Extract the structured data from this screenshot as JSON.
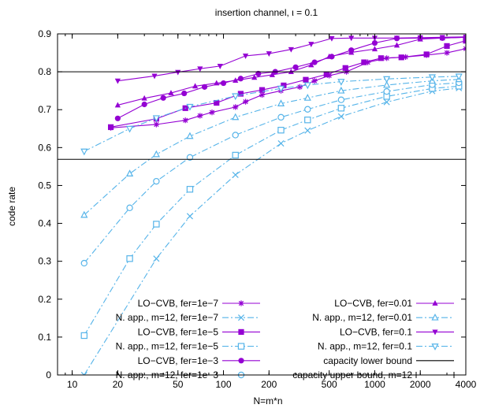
{
  "chart_data": {
    "type": "line",
    "title": "insertion channel, ι = 0.1",
    "xlabel": "N=m*n",
    "ylabel": "code rate",
    "xscale": "log",
    "xlim": [
      8,
      4000
    ],
    "ylim": [
      0,
      0.9
    ],
    "xticks": [
      10,
      20,
      50,
      100,
      200,
      500,
      1000,
      2000,
      4000
    ],
    "yticks": [
      0,
      0.1,
      0.2,
      0.3,
      0.4,
      0.5,
      0.6,
      0.7,
      0.8,
      0.9
    ],
    "grid": false,
    "legend_position": "bottom",
    "colors": {
      "purple": "#9400d3",
      "cyan": "#56b4e9",
      "black": "#000000"
    },
    "series": [
      {
        "name": "LO−CVB, fer=1e−7",
        "color": "#9400d3",
        "marker": "star",
        "line": "solid",
        "x": [
          18,
          36,
          56,
          70,
          84,
          120,
          140,
          180,
          240,
          320,
          400,
          500,
          650,
          900,
          1200,
          1600,
          2200,
          3000,
          4000
        ],
        "y": [
          0.652,
          0.661,
          0.672,
          0.684,
          0.693,
          0.707,
          0.721,
          0.739,
          0.75,
          0.76,
          0.776,
          0.79,
          0.8,
          0.825,
          0.836,
          0.839,
          0.844,
          0.85,
          0.861
        ]
      },
      {
        "name": "N. app., m=12, fer=1e−7",
        "color": "#56b4e9",
        "marker": "x",
        "line": "dashdot",
        "x": [
          12,
          36,
          60,
          120,
          240,
          360,
          600,
          1200,
          2400,
          3600
        ],
        "y": [
          0.0,
          0.307,
          0.419,
          0.528,
          0.611,
          0.645,
          0.682,
          0.72,
          0.749,
          0.757
        ]
      },
      {
        "name": "LO−CVB, fer=1e−5",
        "color": "#9400d3",
        "marker": "square",
        "line": "solid",
        "x": [
          18,
          36,
          56,
          90,
          130,
          180,
          250,
          350,
          480,
          640,
          850,
          1100,
          1500,
          2200,
          3000,
          4000
        ],
        "y": [
          0.654,
          0.676,
          0.704,
          0.718,
          0.742,
          0.752,
          0.764,
          0.779,
          0.793,
          0.81,
          0.825,
          0.836,
          0.838,
          0.846,
          0.868,
          0.882
        ]
      },
      {
        "name": "N. app., m=12, fer=1e−5",
        "color": "#56b4e9",
        "marker": "open-square",
        "line": "dashdot",
        "x": [
          12,
          24,
          36,
          60,
          120,
          240,
          360,
          600,
          1200,
          2400,
          3600
        ],
        "y": [
          0.104,
          0.307,
          0.398,
          0.49,
          0.58,
          0.646,
          0.673,
          0.704,
          0.735,
          0.756,
          0.762
        ]
      },
      {
        "name": "LO−CVB, fer=1e−3",
        "color": "#9400d3",
        "marker": "circle",
        "line": "solid",
        "x": [
          20,
          30,
          40,
          55,
          75,
          100,
          130,
          170,
          220,
          300,
          400,
          520,
          700,
          1000,
          1400,
          2000,
          2800,
          4000
        ],
        "y": [
          0.677,
          0.714,
          0.731,
          0.743,
          0.76,
          0.77,
          0.782,
          0.795,
          0.8,
          0.812,
          0.825,
          0.84,
          0.857,
          0.876,
          0.888,
          0.889,
          0.889,
          0.891
        ]
      },
      {
        "name": "N. app., m=12, fer=1e−3",
        "color": "#56b4e9",
        "marker": "open-circle",
        "line": "dashdot",
        "x": [
          12,
          24,
          36,
          60,
          120,
          240,
          360,
          600,
          1200,
          2400,
          3600
        ],
        "y": [
          0.295,
          0.441,
          0.511,
          0.574,
          0.633,
          0.68,
          0.701,
          0.726,
          0.748,
          0.766,
          0.771
        ]
      },
      {
        "name": "LO−CVB, fer=0.01",
        "color": "#9400d3",
        "marker": "triangle",
        "line": "solid",
        "x": [
          20,
          30,
          45,
          65,
          90,
          120,
          160,
          210,
          280,
          380,
          500,
          700,
          1000,
          1400,
          2000,
          2800,
          4000
        ],
        "y": [
          0.712,
          0.73,
          0.744,
          0.762,
          0.77,
          0.777,
          0.785,
          0.792,
          0.8,
          0.818,
          0.84,
          0.851,
          0.86,
          0.87,
          0.886,
          0.889,
          0.891
        ]
      },
      {
        "name": "N. app., m=12, fer=0.01",
        "color": "#56b4e9",
        "marker": "open-triangle",
        "line": "dashdot",
        "x": [
          12,
          24,
          36,
          60,
          120,
          240,
          360,
          600,
          1200,
          2400,
          3600
        ],
        "y": [
          0.422,
          0.531,
          0.582,
          0.63,
          0.68,
          0.716,
          0.731,
          0.75,
          0.765,
          0.776,
          0.78
        ]
      },
      {
        "name": "LO−CVB, fer=0.1",
        "color": "#9400d3",
        "marker": "triangle-down",
        "line": "solid",
        "x": [
          20,
          35,
          50,
          70,
          95,
          140,
          200,
          280,
          380,
          520,
          700,
          1000,
          1400,
          2000,
          2800,
          4000
        ],
        "y": [
          0.776,
          0.789,
          0.799,
          0.808,
          0.815,
          0.842,
          0.848,
          0.859,
          0.873,
          0.888,
          0.889,
          0.889,
          0.889,
          0.89,
          0.891,
          0.892
        ]
      },
      {
        "name": "N. app., m=12, fer=0.1",
        "color": "#56b4e9",
        "marker": "open-triangle-down",
        "line": "dashdot",
        "x": [
          12,
          24,
          36,
          60,
          120,
          240,
          360,
          600,
          1200,
          2400,
          3600
        ],
        "y": [
          0.59,
          0.65,
          0.678,
          0.708,
          0.736,
          0.756,
          0.765,
          0.774,
          0.781,
          0.786,
          0.788
        ]
      },
      {
        "name": "capacity lower bound",
        "color": "#000000",
        "marker": "none",
        "line": "solid",
        "hline": 0.569
      },
      {
        "name": "capacity upper bound, m=12",
        "color": "#000000",
        "marker": "errorbar",
        "line": "solid",
        "hline": 0.8
      }
    ]
  }
}
